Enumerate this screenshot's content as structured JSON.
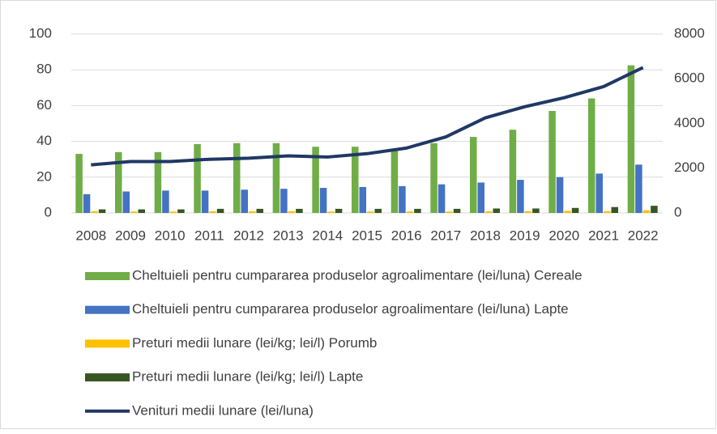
{
  "chart_data": {
    "type": "bar",
    "categories": [
      "2008",
      "2009",
      "2010",
      "2011",
      "2012",
      "2013",
      "2014",
      "2015",
      "2016",
      "2017",
      "2018",
      "2019",
      "2020",
      "2021",
      "2022"
    ],
    "series": [
      {
        "name": "Cheltuieli pentru cumpararea produselor agroalimentare (lei/luna) Cereale",
        "color": "#70ad47",
        "type": "bar",
        "values": [
          33,
          34,
          34,
          38.5,
          39,
          39,
          37,
          37,
          36,
          39,
          42.5,
          46.5,
          57,
          64,
          82.5
        ]
      },
      {
        "name": "Cheltuieli pentru cumpararea produselor agroalimentare (lei/luna) Lapte",
        "color": "#4472c4",
        "type": "bar",
        "values": [
          10.5,
          12,
          12.5,
          12.5,
          13,
          13.5,
          14,
          14.5,
          15,
          16,
          17,
          18.5,
          20,
          22,
          27
        ]
      },
      {
        "name": "Preturi medii lunare (lei/kg; lei/l) Porumb",
        "color": "#ffc000",
        "type": "bar",
        "values": [
          1,
          0.8,
          0.8,
          0.9,
          0.9,
          1,
          0.8,
          0.8,
          0.8,
          0.8,
          0.9,
          1,
          1.2,
          1,
          1.5
        ]
      },
      {
        "name": "Preturi medii lunare (lei/kg; lei/l) Lapte",
        "color": "#375623",
        "type": "bar",
        "values": [
          2,
          2,
          2,
          2.3,
          2.3,
          2.3,
          2.3,
          2.3,
          2.3,
          2.3,
          2.5,
          2.5,
          2.8,
          3.3,
          4
        ]
      },
      {
        "name": "Venituri medii lunare (lei/luna)",
        "color": "#203864",
        "type": "line",
        "axis": "y2",
        "values": [
          2150,
          2300,
          2300,
          2400,
          2450,
          2550,
          2500,
          2650,
          2900,
          3400,
          4250,
          4750,
          5150,
          5650,
          6500
        ]
      }
    ],
    "ylim": [
      0,
      100
    ],
    "yticks": [
      0,
      20,
      40,
      60,
      80,
      100
    ],
    "y2lim": [
      0,
      8000
    ],
    "y2ticks": [
      0,
      2000,
      4000,
      6000,
      8000
    ],
    "grid": true
  }
}
